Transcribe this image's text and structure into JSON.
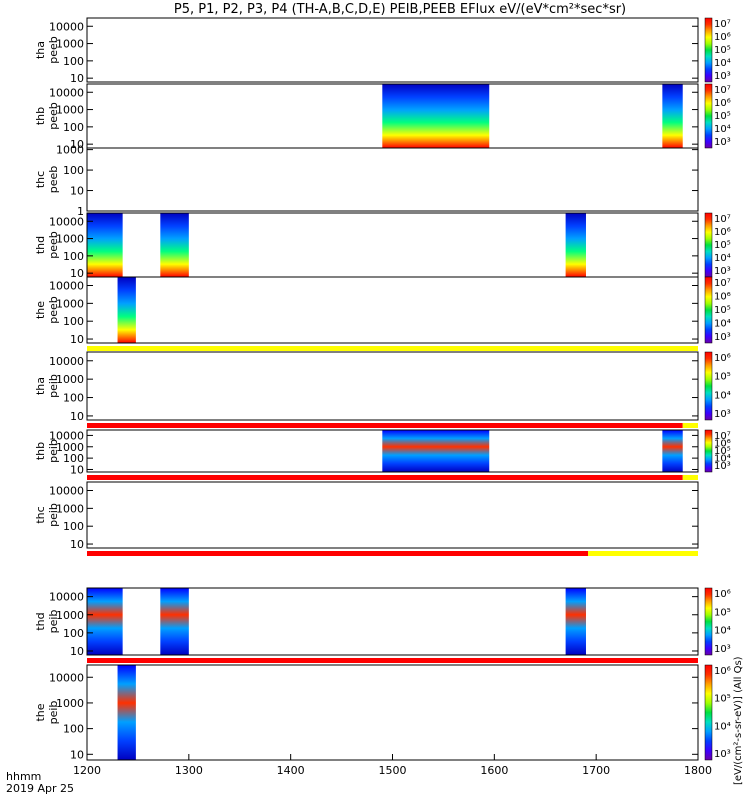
{
  "chart_data": {
    "type": "heatmap",
    "title": "P5, P1, P2, P3, P4 (TH-A,B,C,D,E) PEIB,PEEB EFlux eV/(eV*cm²*sec*sr)",
    "x_axis": {
      "range": [
        1200,
        1800
      ],
      "ticks": [
        "1200",
        "1300",
        "1400",
        "1500",
        "1600",
        "1700",
        "1800"
      ],
      "label_line1": "hhmm",
      "label_line2": "2019 Apr 25"
    },
    "y_scale": "log",
    "panels": [
      {
        "label_top": "tha",
        "label_bottom": "peeb",
        "yticks": [
          "10000",
          "1000",
          "100",
          "10"
        ],
        "ylim": [
          6,
          30000
        ],
        "segments": [],
        "colorbar_ticks": [
          "10⁷",
          "10⁶",
          "10⁵",
          "10⁴",
          "10³"
        ],
        "colorbar_label": "(All Qs)[eV/(cm²-s-sr-eV)]"
      },
      {
        "label_top": "thb",
        "label_bottom": "peeb",
        "yticks": [
          "10000",
          "1000",
          "100",
          "10"
        ],
        "ylim": [
          6,
          30000
        ],
        "segments": [
          [
            1490,
            1595
          ],
          [
            1765,
            1785
          ]
        ],
        "colorbar_ticks": [
          "10⁷",
          "10⁶",
          "10⁵",
          "10⁴",
          "10³"
        ],
        "colorbar_label": "(All Qs)[eV/(cm²-s-sr-eV)]"
      },
      {
        "label_top": "thc",
        "label_bottom": "peeb",
        "yticks": [
          "1000",
          "100",
          "10",
          "1"
        ],
        "ylim": [
          1,
          1200
        ],
        "segments": [],
        "colorbar_ticks": [],
        "colorbar_label": "(All Qs)[eV/(cm²-s-sr-eV)]"
      },
      {
        "label_top": "thd",
        "label_bottom": "peeb",
        "yticks": [
          "10000",
          "1000",
          "100",
          "10"
        ],
        "ylim": [
          6,
          30000
        ],
        "segments": [
          [
            1200,
            1235
          ],
          [
            1272,
            1300
          ],
          [
            1670,
            1690
          ]
        ],
        "colorbar_ticks": [
          "10⁷",
          "10⁶",
          "10⁵",
          "10⁴",
          "10³"
        ],
        "colorbar_label": "(All Qs)[eV/(cm²-s-sr-eV)]"
      },
      {
        "label_top": "the",
        "label_bottom": "peeb",
        "yticks": [
          "10000",
          "1000",
          "100",
          "10"
        ],
        "ylim": [
          6,
          30000
        ],
        "segments": [
          [
            1230,
            1248
          ]
        ],
        "colorbar_ticks": [
          "10⁷",
          "10⁶",
          "10⁵",
          "10⁴",
          "10³"
        ],
        "colorbar_label": "(All Qs)[eV/(cm²-s-sr-eV)]"
      },
      {
        "label_top": "tha",
        "label_bottom": "peib",
        "yticks": [
          "10000",
          "1000",
          "100",
          "10"
        ],
        "ylim": [
          6,
          30000
        ],
        "segments": [],
        "colorbar_ticks": [
          "10⁶",
          "10⁵",
          "10⁴",
          "10³"
        ],
        "colorbar_label": "(All Qs)[eV/(cm²-s-sr-eV)]"
      },
      {
        "label_top": "thb",
        "label_bottom": "peib",
        "yticks": [
          "10000",
          "1000",
          "100",
          "10"
        ],
        "ylim": [
          6,
          30000
        ],
        "segments": [
          [
            1490,
            1595
          ],
          [
            1765,
            1785
          ]
        ],
        "colorbar_ticks": [
          "10⁷",
          "10⁶",
          "10⁵",
          "10⁴",
          "10³"
        ],
        "colorbar_label": "(All Qs)[eV/(cm²-s-sr-eV)]"
      },
      {
        "label_top": "thc",
        "label_bottom": "peib",
        "yticks": [
          "10000",
          "1000",
          "100",
          "10"
        ],
        "ylim": [
          6,
          30000
        ],
        "segments": [],
        "colorbar_ticks": [],
        "colorbar_label": "(All Qs)[eV/(cm²-s-sr-eV)]"
      },
      {
        "label_top": "thd",
        "label_bottom": "peib",
        "yticks": [
          "10000",
          "1000",
          "100",
          "10"
        ],
        "ylim": [
          6,
          30000
        ],
        "segments": [
          [
            1200,
            1235
          ],
          [
            1272,
            1300
          ],
          [
            1670,
            1690
          ]
        ],
        "colorbar_ticks": [
          "10⁶",
          "10⁵",
          "10⁴",
          "10³"
        ],
        "colorbar_label": "(All Qs)[eV/(cm²-s-sr-eV)]"
      },
      {
        "label_top": "the",
        "label_bottom": "peib",
        "yticks": [
          "10000",
          "1000",
          "100",
          "10"
        ],
        "ylim": [
          6,
          30000
        ],
        "segments": [
          [
            1230,
            1248
          ]
        ],
        "colorbar_ticks": [
          "10⁶",
          "10⁵",
          "10⁴",
          "10³"
        ],
        "colorbar_label": "(All Qs)[eV/(cm²-s-sr-eV)]"
      }
    ],
    "status_bars": [
      {
        "after_panel": 4,
        "color": "#ffff00"
      },
      {
        "after_panel": 5,
        "color": "#ff0000",
        "ends_at": 1785,
        "tail_color": "#ffff00"
      },
      {
        "after_panel": 6,
        "color": "#ff0000",
        "ends_at": 1785,
        "tail_color": "#ffff00"
      },
      {
        "after_panel": 7,
        "color": "#ff0000",
        "ends_at": 1692,
        "tail_color": "#ffff00"
      },
      {
        "after_panel": 8,
        "color": "#ff0000"
      }
    ],
    "right_axis_label": "[eV/(cm²-s-sr-eV)] (All Qs)"
  }
}
